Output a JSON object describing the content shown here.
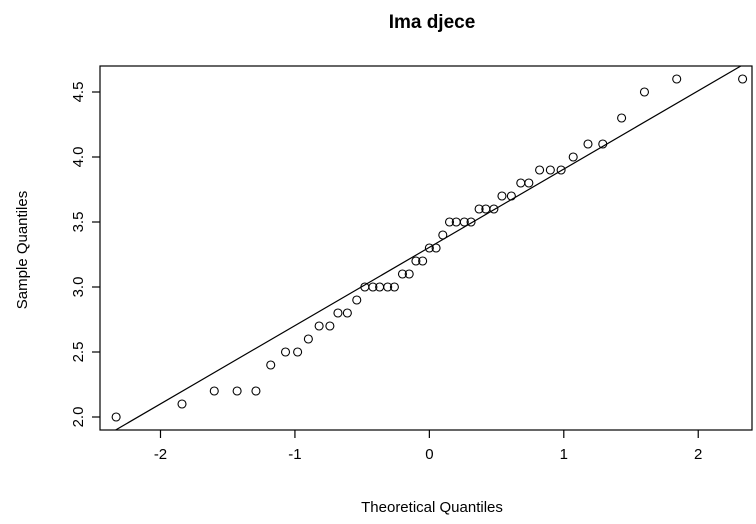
{
  "chart_data": {
    "type": "scatter",
    "title": "Ima djece",
    "xlabel": "Theoretical Quantiles",
    "ylabel": "Sample Quantiles",
    "xlim": [
      -2.45,
      2.4
    ],
    "ylim": [
      1.9,
      4.7
    ],
    "x_ticks": [
      -2,
      -1,
      0,
      1,
      2
    ],
    "x_tick_labels": [
      "-2",
      "-1",
      "0",
      "1",
      "2"
    ],
    "y_ticks": [
      2.0,
      2.5,
      3.0,
      3.5,
      4.0,
      4.5
    ],
    "y_tick_labels": [
      "2.0",
      "2.5",
      "3.0",
      "3.5",
      "4.0",
      "4.5"
    ],
    "grid": false,
    "points": {
      "x": [
        -2.33,
        -1.84,
        -1.6,
        -1.43,
        -1.29,
        -1.18,
        -1.07,
        -0.98,
        -0.9,
        -0.82,
        -0.74,
        -0.68,
        -0.61,
        -0.54,
        -0.48,
        -0.42,
        -0.37,
        -0.31,
        -0.26,
        -0.2,
        -0.15,
        -0.1,
        -0.05,
        0.0,
        0.05,
        0.1,
        0.15,
        0.2,
        0.26,
        0.31,
        0.37,
        0.42,
        0.48,
        0.54,
        0.61,
        0.68,
        0.74,
        0.82,
        0.9,
        0.98,
        1.07,
        1.18,
        1.29,
        1.43,
        1.6,
        1.84,
        2.33
      ],
      "y": [
        2.0,
        2.1,
        2.2,
        2.2,
        2.2,
        2.4,
        2.5,
        2.5,
        2.6,
        2.7,
        2.7,
        2.8,
        2.8,
        2.9,
        3.0,
        3.0,
        3.0,
        3.0,
        3.0,
        3.1,
        3.1,
        3.2,
        3.2,
        3.3,
        3.3,
        3.4,
        3.5,
        3.5,
        3.5,
        3.5,
        3.6,
        3.6,
        3.6,
        3.7,
        3.7,
        3.8,
        3.8,
        3.9,
        3.9,
        3.9,
        4.0,
        4.1,
        4.1,
        4.3,
        4.5,
        4.6,
        4.6
      ]
    },
    "reference_line": {
      "x": [
        -2.45,
        2.4
      ],
      "y": [
        1.83,
        4.75
      ]
    }
  }
}
